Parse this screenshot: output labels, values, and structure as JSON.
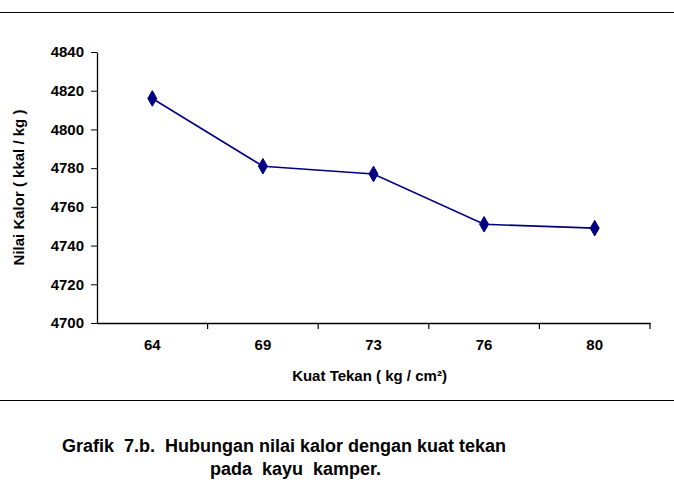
{
  "chart_data": {
    "type": "line",
    "title": "Grafik  7.b.  Hubungan nilai kalor dengan kuat tekan",
    "subtitle": "pada  kayu  kamper.",
    "x_label": "Kuat  Tekan  ( kg / cm²)",
    "y_label": "Nilai Kalor  ( kkal / kg )",
    "categories": [
      "64",
      "69",
      "73",
      "76",
      "80"
    ],
    "series": [
      {
        "name": "Nilai Kalor",
        "color": "#000080",
        "marker": "diamond",
        "line_style": "solid",
        "values": [
          4816,
          4781,
          4777,
          4751,
          4749
        ]
      }
    ],
    "ylim": [
      4700,
      4840
    ],
    "yticks": [
      4700,
      4720,
      4740,
      4760,
      4780,
      4800,
      4820,
      4840
    ],
    "grid": false
  }
}
